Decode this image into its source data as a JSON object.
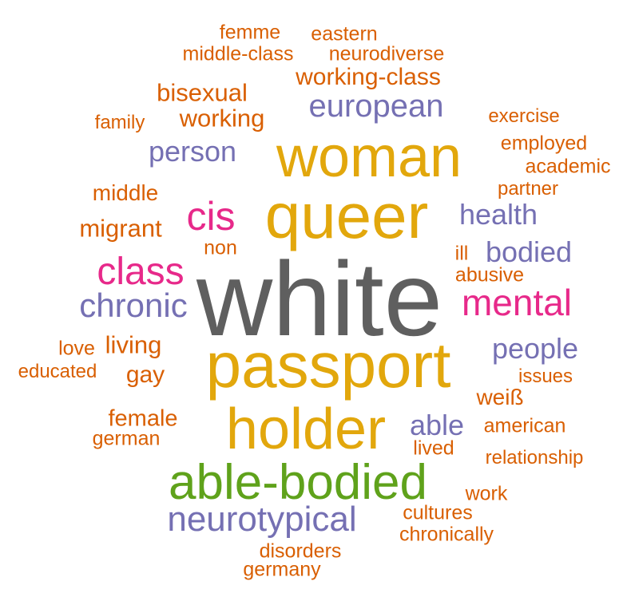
{
  "palette": {
    "gray": "#5f5f5f",
    "gold": "#e2a70c",
    "orange": "#d95f02",
    "purple": "#7570b3",
    "pink": "#e7298a",
    "green": "#5fa21b"
  },
  "words": [
    {
      "text": "white",
      "color": "gray"
    },
    {
      "text": "passport",
      "color": "gold"
    },
    {
      "text": "queer",
      "color": "gold"
    },
    {
      "text": "woman",
      "color": "gold"
    },
    {
      "text": "holder",
      "color": "gold"
    },
    {
      "text": "able-bodied",
      "color": "green"
    },
    {
      "text": "neurotypical",
      "color": "purple"
    },
    {
      "text": "mental",
      "color": "pink"
    },
    {
      "text": "class",
      "color": "pink"
    },
    {
      "text": "cis",
      "color": "pink"
    },
    {
      "text": "chronic",
      "color": "purple"
    },
    {
      "text": "european",
      "color": "purple"
    },
    {
      "text": "person",
      "color": "purple"
    },
    {
      "text": "health",
      "color": "purple"
    },
    {
      "text": "bodied",
      "color": "purple"
    },
    {
      "text": "people",
      "color": "purple"
    },
    {
      "text": "able",
      "color": "purple"
    },
    {
      "text": "working-class",
      "color": "orange"
    },
    {
      "text": "bisexual",
      "color": "orange"
    },
    {
      "text": "working",
      "color": "orange"
    },
    {
      "text": "middle",
      "color": "orange"
    },
    {
      "text": "migrant",
      "color": "orange"
    },
    {
      "text": "living",
      "color": "orange"
    },
    {
      "text": "gay",
      "color": "orange"
    },
    {
      "text": "female",
      "color": "orange"
    },
    {
      "text": "weiß",
      "color": "orange"
    },
    {
      "text": "femme",
      "color": "orange"
    },
    {
      "text": "eastern",
      "color": "orange"
    },
    {
      "text": "middle-class",
      "color": "orange"
    },
    {
      "text": "neurodiverse",
      "color": "orange"
    },
    {
      "text": "family",
      "color": "orange"
    },
    {
      "text": "exercise",
      "color": "orange"
    },
    {
      "text": "employed",
      "color": "orange"
    },
    {
      "text": "academic",
      "color": "orange"
    },
    {
      "text": "partner",
      "color": "orange"
    },
    {
      "text": "non",
      "color": "orange"
    },
    {
      "text": "ill",
      "color": "orange"
    },
    {
      "text": "abusive",
      "color": "orange"
    },
    {
      "text": "love",
      "color": "orange"
    },
    {
      "text": "educated",
      "color": "orange"
    },
    {
      "text": "issues",
      "color": "orange"
    },
    {
      "text": "german",
      "color": "orange"
    },
    {
      "text": "american",
      "color": "orange"
    },
    {
      "text": "lived",
      "color": "orange"
    },
    {
      "text": "relationship",
      "color": "orange"
    },
    {
      "text": "work",
      "color": "orange"
    },
    {
      "text": "cultures",
      "color": "orange"
    },
    {
      "text": "chronically",
      "color": "orange"
    },
    {
      "text": "disorders",
      "color": "orange"
    },
    {
      "text": "germany",
      "color": "orange"
    }
  ]
}
